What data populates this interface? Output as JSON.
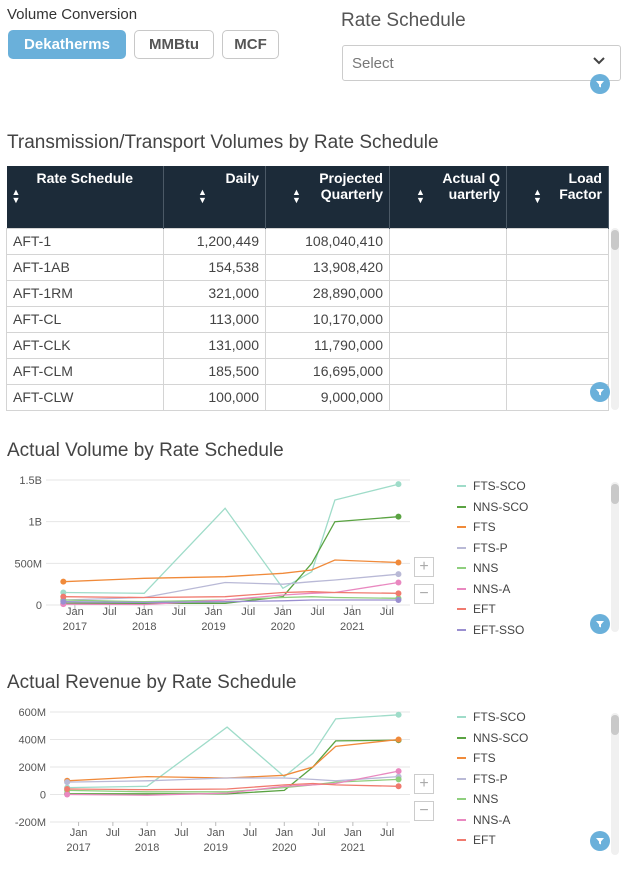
{
  "volume_conversion": {
    "label": "Volume Conversion",
    "options": [
      "Dekatherms",
      "MMBtu",
      "MCF"
    ],
    "selected": "Dekatherms"
  },
  "rate_schedule_filter": {
    "title": "Rate Schedule",
    "placeholder": "Select"
  },
  "table": {
    "title": "Transmission/Transport Volumes by Rate Schedule",
    "columns": [
      "Rate Schedule",
      "Daily",
      "Projected Quarterly",
      "Actual Quarterly",
      "Load Factor"
    ],
    "rows": [
      [
        "AFT-1",
        "1,200,449",
        "108,040,410",
        "",
        ""
      ],
      [
        "AFT-1AB",
        "154,538",
        "13,908,420",
        "",
        ""
      ],
      [
        "AFT-1RM",
        "321,000",
        "28,890,000",
        "",
        ""
      ],
      [
        "AFT-CL",
        "113,000",
        "10,170,000",
        "",
        ""
      ],
      [
        "AFT-CLK",
        "131,000",
        "11,790,000",
        "",
        ""
      ],
      [
        "AFT-CLM",
        "185,500",
        "16,695,000",
        "",
        ""
      ],
      [
        "AFT-CLW",
        "100,000",
        "9,000,000",
        "",
        ""
      ]
    ]
  },
  "chart_data": [
    {
      "type": "line",
      "title": "Actual Volume by Rate Schedule",
      "xlabel": "",
      "ylabel": "",
      "x": [
        "2016-11",
        "2018-01",
        "2019-03",
        "2020-01",
        "2020-06",
        "2020-10",
        "2021-09"
      ],
      "x_ticks": [
        {
          "label": "Jan",
          "sub": "2017"
        },
        {
          "label": "Jul",
          "sub": ""
        },
        {
          "label": "Jan",
          "sub": "2018"
        },
        {
          "label": "Jul",
          "sub": ""
        },
        {
          "label": "Jan",
          "sub": "2019"
        },
        {
          "label": "Jul",
          "sub": ""
        },
        {
          "label": "Jan",
          "sub": "2020"
        },
        {
          "label": "Jul",
          "sub": ""
        },
        {
          "label": "Jan",
          "sub": "2021"
        },
        {
          "label": "Jul",
          "sub": ""
        }
      ],
      "y_ticks": [
        {
          "value": 0,
          "label": "0"
        },
        {
          "value": 500000000,
          "label": "500M"
        },
        {
          "value": 1000000000,
          "label": "1B"
        },
        {
          "value": 1500000000,
          "label": "1.5B"
        }
      ],
      "ylim": [
        0,
        1500000000
      ],
      "series": [
        {
          "name": "FTS-SCO",
          "color": "#9fdcc9",
          "values": [
            150000000,
            140000000,
            1160000000,
            200000000,
            400000000,
            1260000000,
            1450000000
          ]
        },
        {
          "name": "NNS-SCO",
          "color": "#5aa342",
          "values": [
            20000000,
            20000000,
            20000000,
            100000000,
            500000000,
            1000000000,
            1060000000
          ]
        },
        {
          "name": "FTS",
          "color": "#f08a3a",
          "values": [
            280000000,
            320000000,
            340000000,
            380000000,
            420000000,
            540000000,
            510000000
          ]
        },
        {
          "name": "FTS-P",
          "color": "#b9b9d6",
          "values": [
            60000000,
            90000000,
            270000000,
            250000000,
            280000000,
            300000000,
            370000000
          ]
        },
        {
          "name": "NNS",
          "color": "#8fcf7e",
          "values": [
            60000000,
            40000000,
            60000000,
            90000000,
            100000000,
            90000000,
            80000000
          ]
        },
        {
          "name": "NNS-A",
          "color": "#e988c0",
          "values": [
            10000000,
            5000000,
            60000000,
            120000000,
            140000000,
            150000000,
            270000000
          ]
        },
        {
          "name": "EFT",
          "color": "#f07a6e",
          "values": [
            100000000,
            90000000,
            100000000,
            150000000,
            160000000,
            150000000,
            140000000
          ]
        },
        {
          "name": "EFT-SSO",
          "color": "#9a8fd0",
          "values": [
            40000000,
            30000000,
            40000000,
            50000000,
            60000000,
            60000000,
            60000000
          ]
        }
      ]
    },
    {
      "type": "line",
      "title": "Actual Revenue by Rate Schedule",
      "xlabel": "",
      "ylabel": "",
      "x": [
        "2016-11",
        "2018-01",
        "2019-03",
        "2020-01",
        "2020-06",
        "2020-10",
        "2021-09"
      ],
      "x_ticks": [
        {
          "label": "Jan",
          "sub": "2017"
        },
        {
          "label": "Jul",
          "sub": ""
        },
        {
          "label": "Jan",
          "sub": "2018"
        },
        {
          "label": "Jul",
          "sub": ""
        },
        {
          "label": "Jan",
          "sub": "2019"
        },
        {
          "label": "Jul",
          "sub": ""
        },
        {
          "label": "Jan",
          "sub": "2020"
        },
        {
          "label": "Jul",
          "sub": ""
        },
        {
          "label": "Jan",
          "sub": "2021"
        },
        {
          "label": "Jul",
          "sub": ""
        }
      ],
      "y_ticks": [
        {
          "value": -200000000,
          "label": "-200M"
        },
        {
          "value": 0,
          "label": "0"
        },
        {
          "value": 200000000,
          "label": "200M"
        },
        {
          "value": 400000000,
          "label": "400M"
        },
        {
          "value": 600000000,
          "label": "600M"
        }
      ],
      "ylim": [
        -200000000,
        600000000
      ],
      "series": [
        {
          "name": "FTS-SCO",
          "color": "#9fdcc9",
          "values": [
            50000000,
            60000000,
            490000000,
            130000000,
            300000000,
            550000000,
            580000000
          ]
        },
        {
          "name": "NNS-SCO",
          "color": "#5aa342",
          "values": [
            5000000,
            5000000,
            5000000,
            30000000,
            200000000,
            390000000,
            395000000
          ]
        },
        {
          "name": "FTS",
          "color": "#f08a3a",
          "values": [
            100000000,
            130000000,
            120000000,
            140000000,
            200000000,
            350000000,
            400000000
          ]
        },
        {
          "name": "FTS-P",
          "color": "#b9b9d6",
          "values": [
            90000000,
            100000000,
            120000000,
            120000000,
            110000000,
            100000000,
            130000000
          ]
        },
        {
          "name": "NNS",
          "color": "#8fcf7e",
          "values": [
            30000000,
            20000000,
            20000000,
            50000000,
            70000000,
            90000000,
            110000000
          ]
        },
        {
          "name": "NNS-A",
          "color": "#e988c0",
          "values": [
            0,
            -5000000,
            10000000,
            60000000,
            70000000,
            80000000,
            170000000
          ]
        },
        {
          "name": "EFT",
          "color": "#f07a6e",
          "values": [
            40000000,
            35000000,
            40000000,
            70000000,
            80000000,
            70000000,
            60000000
          ]
        }
      ]
    }
  ]
}
